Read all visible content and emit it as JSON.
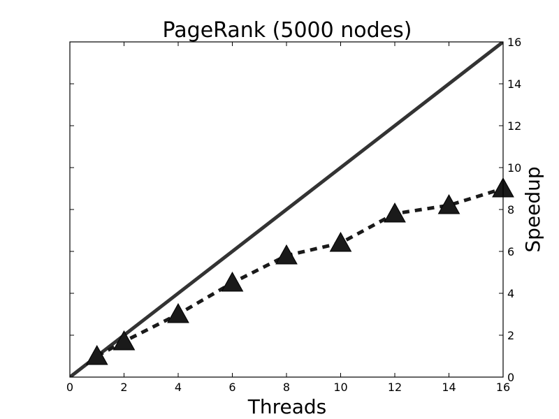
{
  "chart_data": {
    "type": "line",
    "title": "PageRank (5000 nodes)",
    "xlabel": "Threads",
    "ylabel": "Speedup",
    "xlim": [
      0,
      16
    ],
    "ylim": [
      0,
      16
    ],
    "x_ticks": [
      0,
      2,
      4,
      6,
      8,
      10,
      12,
      14,
      16
    ],
    "y_ticks": [
      0,
      2,
      4,
      6,
      8,
      10,
      12,
      14,
      16
    ],
    "y_axis_position": "right",
    "grid": false,
    "legend": "none",
    "series": [
      {
        "style": "solid",
        "color": "#333333",
        "x": [
          0,
          16
        ],
        "y": [
          0,
          16
        ]
      },
      {
        "style": "dashed",
        "marker": "triangle",
        "color": "#1a1a1a",
        "x": [
          1,
          2,
          4,
          6,
          8,
          10,
          12,
          14,
          16
        ],
        "y": [
          1.0,
          1.7,
          3.0,
          4.5,
          5.8,
          6.4,
          7.8,
          8.2,
          9.0
        ]
      }
    ]
  }
}
